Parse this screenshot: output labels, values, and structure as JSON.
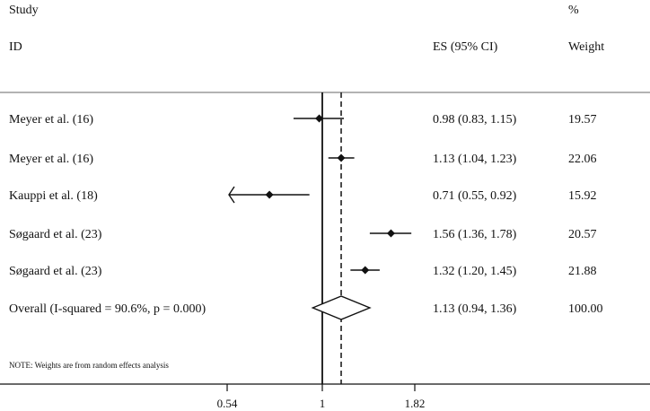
{
  "chart_data": {
    "type": "forest",
    "headers": {
      "study_top": "Study",
      "study_bottom": "ID",
      "es": "ES (95% CI)",
      "weight_top": "%",
      "weight_bottom": "Weight"
    },
    "studies": [
      {
        "label": "Meyer et al. (16)",
        "es": 0.98,
        "lower": 0.83,
        "upper": 1.15,
        "es_text": "0.98 (0.83, 1.15)",
        "weight": "19.57",
        "clipped_lower": false
      },
      {
        "label": "Meyer et al. (16)",
        "es": 1.13,
        "lower": 1.04,
        "upper": 1.23,
        "es_text": "1.13 (1.04, 1.23)",
        "weight": "22.06",
        "clipped_lower": false
      },
      {
        "label": "Kauppi et al. (18)",
        "es": 0.71,
        "lower": 0.55,
        "upper": 0.92,
        "es_text": "0.71 (0.55, 0.92)",
        "weight": "15.92",
        "clipped_lower": true
      },
      {
        "label": "Søgaard et al. (23)",
        "es": 1.56,
        "lower": 1.36,
        "upper": 1.78,
        "es_text": "1.56 (1.36, 1.78)",
        "weight": "20.57",
        "clipped_lower": false
      },
      {
        "label": "Søgaard et al. (23)",
        "es": 1.32,
        "lower": 1.2,
        "upper": 1.45,
        "es_text": "1.32 (1.20, 1.45)",
        "weight": "21.88",
        "clipped_lower": false
      }
    ],
    "overall": {
      "label": "Overall  (I-squared = 90.6%, p = 0.000)",
      "es": 1.13,
      "lower": 0.94,
      "upper": 1.36,
      "es_text": "1.13 (0.94, 1.36)",
      "weight": "100.00"
    },
    "note": "NOTE: Weights are from random effects analysis",
    "x_scale": "log",
    "x_ticks": [
      0.54,
      1,
      1.82
    ],
    "x_tick_labels": [
      "0.54",
      "1",
      "1.82"
    ],
    "x_range": [
      0.55,
      1.82
    ],
    "null_line": 1
  }
}
